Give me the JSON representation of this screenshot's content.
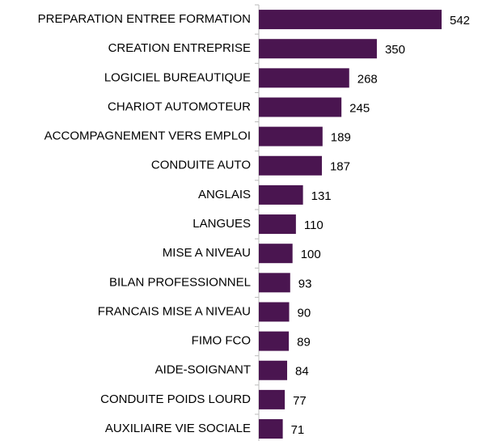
{
  "chart_data": {
    "type": "barh",
    "categories": [
      "PREPARATION ENTREE FORMATION",
      "CREATION ENTREPRISE",
      "LOGICIEL BUREAUTIQUE",
      "CHARIOT AUTOMOTEUR",
      "ACCOMPAGNEMENT VERS EMPLOI",
      "CONDUITE AUTO",
      "ANGLAIS",
      "LANGUES",
      "MISE A NIVEAU",
      "BILAN PROFESSIONNEL",
      "FRANCAIS MISE A NIVEAU",
      "FIMO FCO",
      "AIDE-SOIGNANT",
      "CONDUITE POIDS LOURD",
      "AUXILIAIRE VIE SOCIALE"
    ],
    "values": [
      542,
      350,
      268,
      245,
      189,
      187,
      131,
      110,
      100,
      93,
      90,
      89,
      84,
      77,
      71
    ],
    "color": "#4a1550"
  }
}
